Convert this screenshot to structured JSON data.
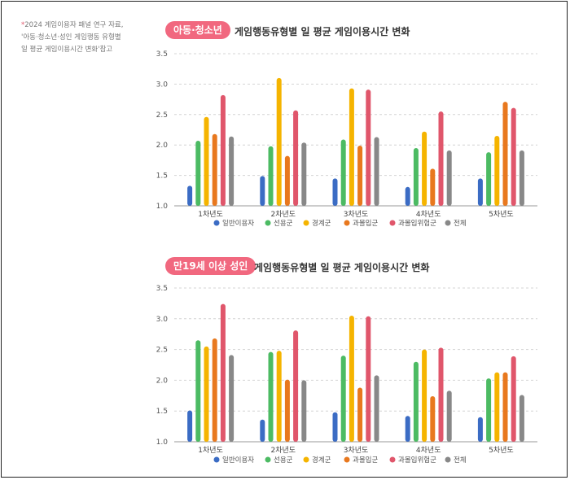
{
  "note": {
    "star": "*",
    "lines": [
      "2024 게임이용자 패널 연구 자료,",
      "'아동·청소년·성인 게임행동 유형별",
      "일 평균 게임이용시간 변화'참고"
    ]
  },
  "colors": {
    "badge": "#f1687f",
    "series": [
      "#3b6cc4",
      "#4cbb63",
      "#f5b400",
      "#e8781e",
      "#e0566b",
      "#888888"
    ]
  },
  "chart_data": [
    {
      "type": "bar",
      "badge": "아동·청소년",
      "title": "게임행동유형별 일 평균 게임이용시간 변화",
      "categories": [
        "1차년도",
        "2차년도",
        "3차년도",
        "4차년도",
        "5차년도"
      ],
      "ylim": [
        1.0,
        3.5
      ],
      "yticks": [
        "1.0",
        "1.5",
        "2.0",
        "2.5",
        "3.0",
        "3.5"
      ],
      "series": [
        {
          "name": "일반이용자",
          "values": [
            1.33,
            1.49,
            1.45,
            1.31,
            1.45
          ]
        },
        {
          "name": "선용군",
          "values": [
            2.07,
            1.98,
            2.09,
            1.95,
            1.88
          ]
        },
        {
          "name": "경계군",
          "values": [
            2.46,
            3.1,
            2.93,
            2.22,
            2.15
          ]
        },
        {
          "name": "과몰입군",
          "values": [
            2.18,
            1.82,
            1.99,
            1.61,
            2.71
          ]
        },
        {
          "name": "과몰입위험군",
          "values": [
            2.82,
            2.57,
            2.91,
            2.55,
            2.61
          ]
        },
        {
          "name": "전체",
          "values": [
            2.14,
            2.04,
            2.13,
            1.91,
            1.91
          ]
        }
      ]
    },
    {
      "type": "bar",
      "badge": "만19세 이상 성인",
      "title": "게임행동유형별 일 평균 게임이용시간 변화",
      "categories": [
        "1차년도",
        "2차년도",
        "3차년도",
        "4차년도",
        "5차년도"
      ],
      "ylim": [
        1.0,
        3.5
      ],
      "yticks": [
        "1.0",
        "1.5",
        "2.0",
        "2.5",
        "3.0",
        "3.5"
      ],
      "series": [
        {
          "name": "일반이용자",
          "values": [
            1.51,
            1.36,
            1.48,
            1.42,
            1.4
          ]
        },
        {
          "name": "선용군",
          "values": [
            2.65,
            2.46,
            2.4,
            2.3,
            2.03
          ]
        },
        {
          "name": "경계군",
          "values": [
            2.55,
            2.48,
            3.05,
            2.5,
            2.13
          ]
        },
        {
          "name": "과몰입군",
          "values": [
            2.68,
            2.01,
            1.88,
            1.74,
            2.13
          ]
        },
        {
          "name": "과몰입위험군",
          "values": [
            3.24,
            2.81,
            3.04,
            2.53,
            2.39
          ]
        },
        {
          "name": "전체",
          "values": [
            2.41,
            2.0,
            2.08,
            1.83,
            1.76
          ]
        }
      ]
    }
  ]
}
